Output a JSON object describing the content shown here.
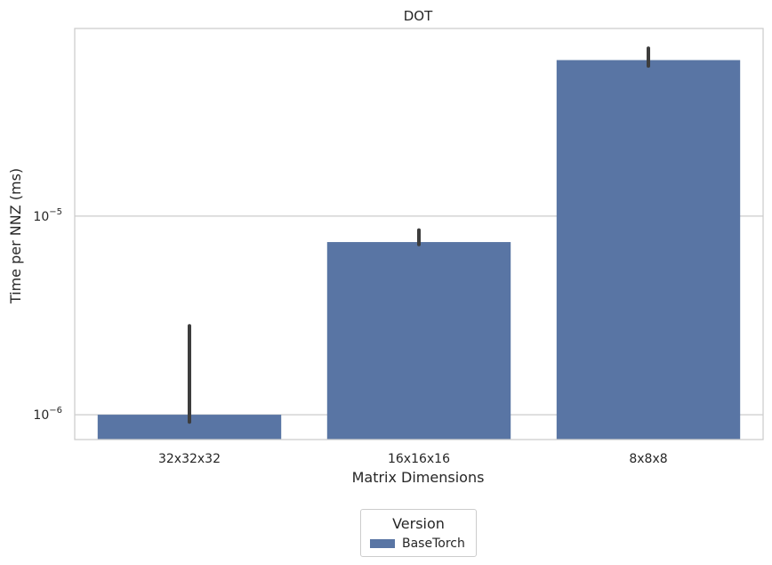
{
  "chart_data": {
    "type": "bar",
    "title": "DOT",
    "xlabel": "Matrix Dimensions",
    "ylabel": "Time per NNZ (ms)",
    "yscale": "log",
    "ylim": [
      7.5e-07,
      8.8e-05
    ],
    "yticks": [
      {
        "value": 1e-06,
        "base": "10",
        "exp": "−6"
      },
      {
        "value": 1e-05,
        "base": "10",
        "exp": "−5"
      }
    ],
    "grid": "horizontal",
    "categories": [
      "32x32x32",
      "16x16x16",
      "8x8x8"
    ],
    "series": [
      {
        "name": "BaseTorch",
        "color": "#5975a4",
        "values": [
          1e-06,
          7.4e-06,
          6.1e-05
        ],
        "error_low": [
          9.2e-07,
          7.2e-06,
          5.7e-05
        ],
        "error_high": [
          2.8e-06,
          8.5e-06,
          7e-05
        ]
      }
    ],
    "legend": {
      "title": "Version",
      "placement": "bottom-center"
    }
  }
}
